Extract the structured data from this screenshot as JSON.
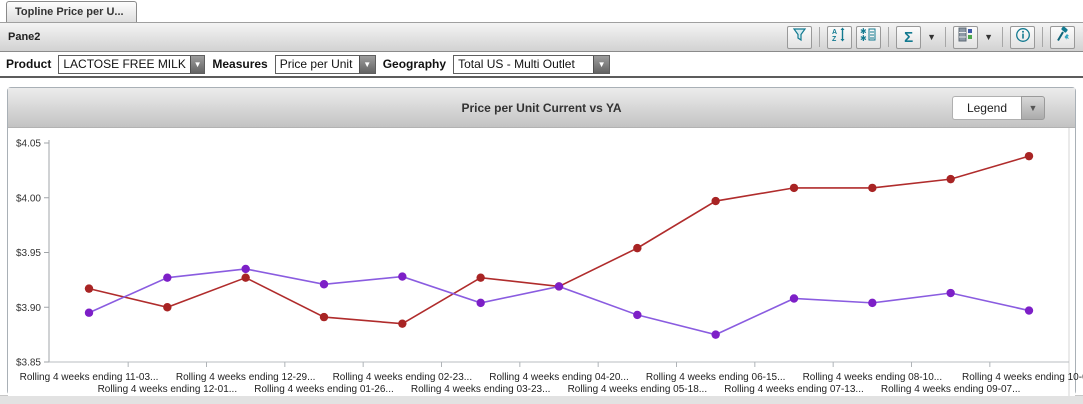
{
  "tab": {
    "label": "Topline Price per U..."
  },
  "pane": {
    "title": "Pane2",
    "toolbar_icons": [
      "funnel-icon",
      "az-sort-icon",
      "attribute-list-icon",
      "sigma-icon",
      "grid-layout-icon",
      "info-icon",
      "design-tools-icon"
    ]
  },
  "filters": {
    "product": {
      "label": "Product",
      "value": "LACTOSE FREE MILK"
    },
    "measures": {
      "label": "Measures",
      "value": "Price per Unit"
    },
    "geography": {
      "label": "Geography",
      "value": "Total US - Multi Outlet"
    }
  },
  "chart": {
    "title": "Price per Unit Current vs YA",
    "legend_button": "Legend"
  },
  "chart_data": {
    "type": "line",
    "title": "Price per Unit Current vs YA",
    "categories": [
      "Rolling 4 weeks ending 11-03...",
      "Rolling 4 weeks ending 12-01...",
      "Rolling 4 weeks ending 12-29...",
      "Rolling 4 weeks ending 01-26...",
      "Rolling 4 weeks ending 02-23...",
      "Rolling 4 weeks ending 03-23...",
      "Rolling 4 weeks ending 04-20...",
      "Rolling 4 weeks ending 05-18...",
      "Rolling 4 weeks ending 06-15...",
      "Rolling 4 weeks ending 07-13...",
      "Rolling 4 weeks ending 08-10...",
      "Rolling 4 weeks ending 09-07...",
      "Rolling 4 weeks ending 10-0..."
    ],
    "series": [
      {
        "name": "Current",
        "line_color": "#b02c2c",
        "marker_color": "#a82424",
        "values": [
          3.917,
          3.9,
          3.927,
          3.891,
          3.885,
          3.927,
          3.919,
          3.954,
          3.997,
          4.009,
          4.009,
          4.017,
          4.038
        ]
      },
      {
        "name": "YA",
        "line_color": "#8a5ce0",
        "marker_color": "#7d1fc7",
        "values": [
          3.895,
          3.927,
          3.935,
          3.921,
          3.928,
          3.904,
          3.919,
          3.893,
          3.875,
          3.908,
          3.904,
          3.913,
          3.897
        ]
      }
    ],
    "ylim": [
      3.85,
      4.05
    ],
    "yticks": [
      3.85,
      3.9,
      3.95,
      4.0,
      4.05
    ],
    "ytick_format": "$0.00",
    "grid": false,
    "x_label_layout": "staggered-two-rows",
    "legend_position": "collapsed-dropdown-button"
  }
}
